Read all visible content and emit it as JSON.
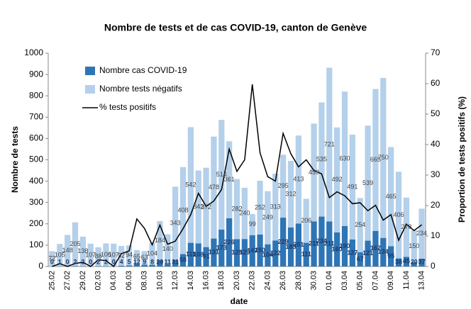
{
  "chart_data": {
    "type": "bar",
    "title": "Nombre de tests et de cas COVID-19, canton de Genève",
    "x_label": "date",
    "y_label": "Nombre de tests",
    "y2_label": "Proportion de tests positifs (%)",
    "stacked": true,
    "categories": [
      "25.02",
      null,
      "27.02",
      null,
      "29.02",
      null,
      "02.03",
      null,
      "04.03",
      null,
      "06.03",
      null,
      "08.03",
      null,
      "10.03",
      null,
      "12.03",
      null,
      "14.03",
      null,
      "16.03",
      null,
      "18.03",
      null,
      "20.03",
      null,
      "22.03",
      null,
      "24.03",
      null,
      "26.03",
      null,
      "28.03",
      null,
      "30.03",
      null,
      "01.04",
      null,
      "03.04",
      null,
      "05.04",
      null,
      "07.04",
      null,
      "09.04",
      null,
      "11.04",
      null,
      "13.04"
    ],
    "series": [
      {
        "name": "Nombre cas COVID-19",
        "color": "#2e75b6",
        "type": "bar",
        "values": [
          0,
          1,
          0,
          2,
          2,
          0,
          2,
          2,
          0,
          4,
          5,
          12,
          9,
          8,
          29,
          11,
          31,
          58,
          111,
          108,
          91,
          131,
          173,
          226,
          128,
          129,
          147,
          150,
          104,
          122,
          229,
          183,
          201,
          111,
          211,
          234,
          211,
          160,
          190,
          127,
          67,
          121,
          167,
          134,
          95,
          38,
          45,
          20,
          37
        ]
      },
      {
        "name": "Nombre tests négatifs",
        "color": "#b4d0ea",
        "type": "bar",
        "values": [
          72,
          105,
          148,
          205,
          138,
          107,
          88,
          106,
          107,
          92,
          94,
          65,
          63,
          104,
          184,
          140,
          343,
          408,
          542,
          342,
          372,
          478,
          514,
          361,
          282,
          240,
          99,
          252,
          249,
          313,
          295,
          312,
          413,
          206,
          459,
          535,
          721,
          492,
          630,
          491,
          254,
          539,
          665,
          750,
          465,
          406,
          278,
          150,
          234
        ]
      },
      {
        "name": "% tests positifs",
        "color": "#000000",
        "type": "line",
        "axis": "y2",
        "values": [
          0,
          0.9,
          0,
          1.0,
          1.4,
          0,
          2.2,
          1.9,
          0,
          4.2,
          5.1,
          15.6,
          12.5,
          7.1,
          13.6,
          7.3,
          8.3,
          12.4,
          17.0,
          24.0,
          19.7,
          21.5,
          25.2,
          38.5,
          31.2,
          35.0,
          59.8,
          37.3,
          29.5,
          28.0,
          43.7,
          37.0,
          32.7,
          35.0,
          31.5,
          30.4,
          22.6,
          24.5,
          23.2,
          20.6,
          20.9,
          18.3,
          20.1,
          15.2,
          17.0,
          8.6,
          13.9,
          11.8,
          13.7
        ]
      }
    ],
    "ylim": [
      0,
      1000
    ],
    "yticks": [
      0,
      100,
      200,
      300,
      400,
      500,
      600,
      700,
      800,
      900,
      1000
    ],
    "y2lim": [
      0,
      70
    ],
    "y2ticks": [
      0,
      10,
      20,
      30,
      40,
      50,
      60,
      70
    ],
    "legend": "upper left",
    "grid": false
  }
}
